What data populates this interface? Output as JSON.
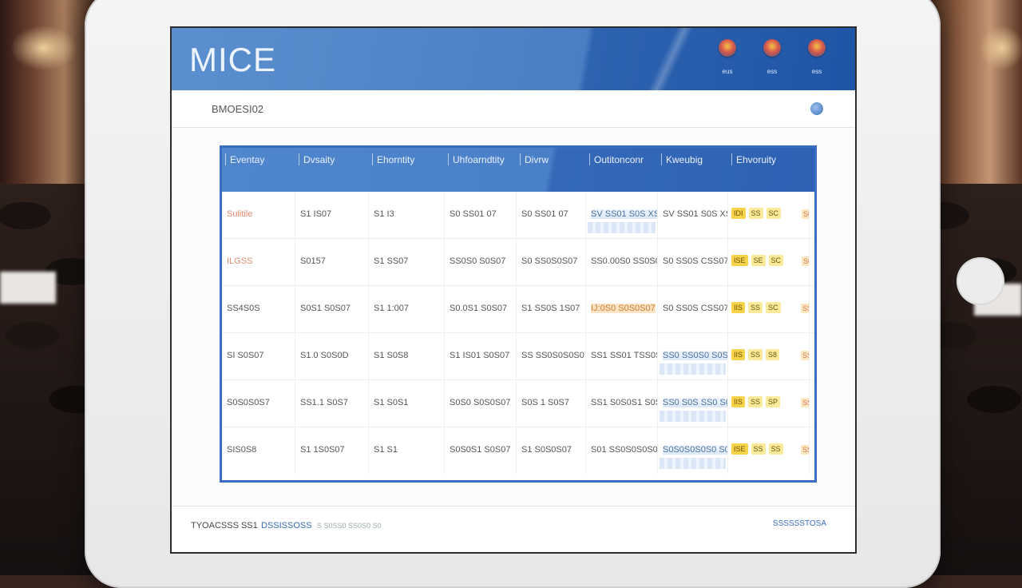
{
  "app": {
    "title": "MICE"
  },
  "header_icons": [
    {
      "icon": "flag-icon",
      "label": "eus"
    },
    {
      "icon": "flag-icon",
      "label": "ess"
    },
    {
      "icon": "flag-icon",
      "label": "ess"
    }
  ],
  "subheader": {
    "title": "BMOESI02",
    "icon": "globe-icon"
  },
  "table": {
    "columns": [
      "Eventay",
      "Dvsaity",
      "Ehorntity",
      "Uhfoarndtity",
      "Divrw",
      "Outitonconr",
      "Kweubig",
      "Ehvoruity"
    ],
    "rows": [
      {
        "c": [
          "Sulitile",
          "S1 IS07",
          "S1 I3",
          "S0 SS01 07",
          "S0 SS01 07",
          "SV SS01 S0S XS3",
          "SV SS01 S0S XS3"
        ],
        "tags": [
          "IDI",
          "SS",
          "SC"
        ],
        "tail": "S0"
      },
      {
        "c": [
          "ILGSS",
          "S0157",
          "S1 SS07",
          "SS0S0 S0S07",
          "S0 SS0S0S07",
          "SS0.00S0 SS0S0S07",
          "S0 SS0S CSS07"
        ],
        "tags": [
          "ISE",
          "SE",
          "SC"
        ],
        "tail": "S0"
      },
      {
        "c": [
          "SS4S0S",
          "S0S1 S0S07",
          "S1 1:007",
          "S0.0S1 S0S07",
          "S1 SS0S 1S07",
          "IJ:0S0 S0S0S07",
          "S0 SS0S CSS07"
        ],
        "tags": [
          "IIS",
          "SS",
          "SC"
        ],
        "tail": "SS"
      },
      {
        "c": [
          "SI S0S07",
          "S1.0 S0S0D",
          "S1 S0S8",
          "S1 IS01 S0S07",
          "SS SS0S0S0S07",
          "SS1 SS01 TSS0S SS0",
          "SS0 SS0S0 S0S SS0"
        ],
        "tags": [
          "IIS",
          "SS",
          "S8"
        ],
        "tail": "SS"
      },
      {
        "c": [
          "S0S0S0S7",
          "SS1.1 S0S7",
          "S1 S0S1",
          "S0S0 S0S0S07",
          "S0S 1 S0S7",
          "SS1 S0S0S1 S0S1S",
          "SS0 S0S SS0 S0"
        ],
        "tags": [
          "IIS",
          "SS",
          "SP"
        ],
        "tail": "SS"
      },
      {
        "c": [
          "SIS0S8",
          "S1 1S0S07",
          "S1 S1",
          "S0S0S1 S0S07",
          "S1 S0S0S07",
          "S01 SS0S0S0S0",
          "S0S0S0S0S0 S0"
        ],
        "tags": [
          "ISE",
          "SS",
          "SS"
        ],
        "tail": "SS"
      }
    ]
  },
  "footer": {
    "left": "TYOACSSS SS1",
    "link": "DSSISSOSS",
    "note": "S S0SS0 SS0S0 S0",
    "right": "SSSSSSTOSA"
  }
}
